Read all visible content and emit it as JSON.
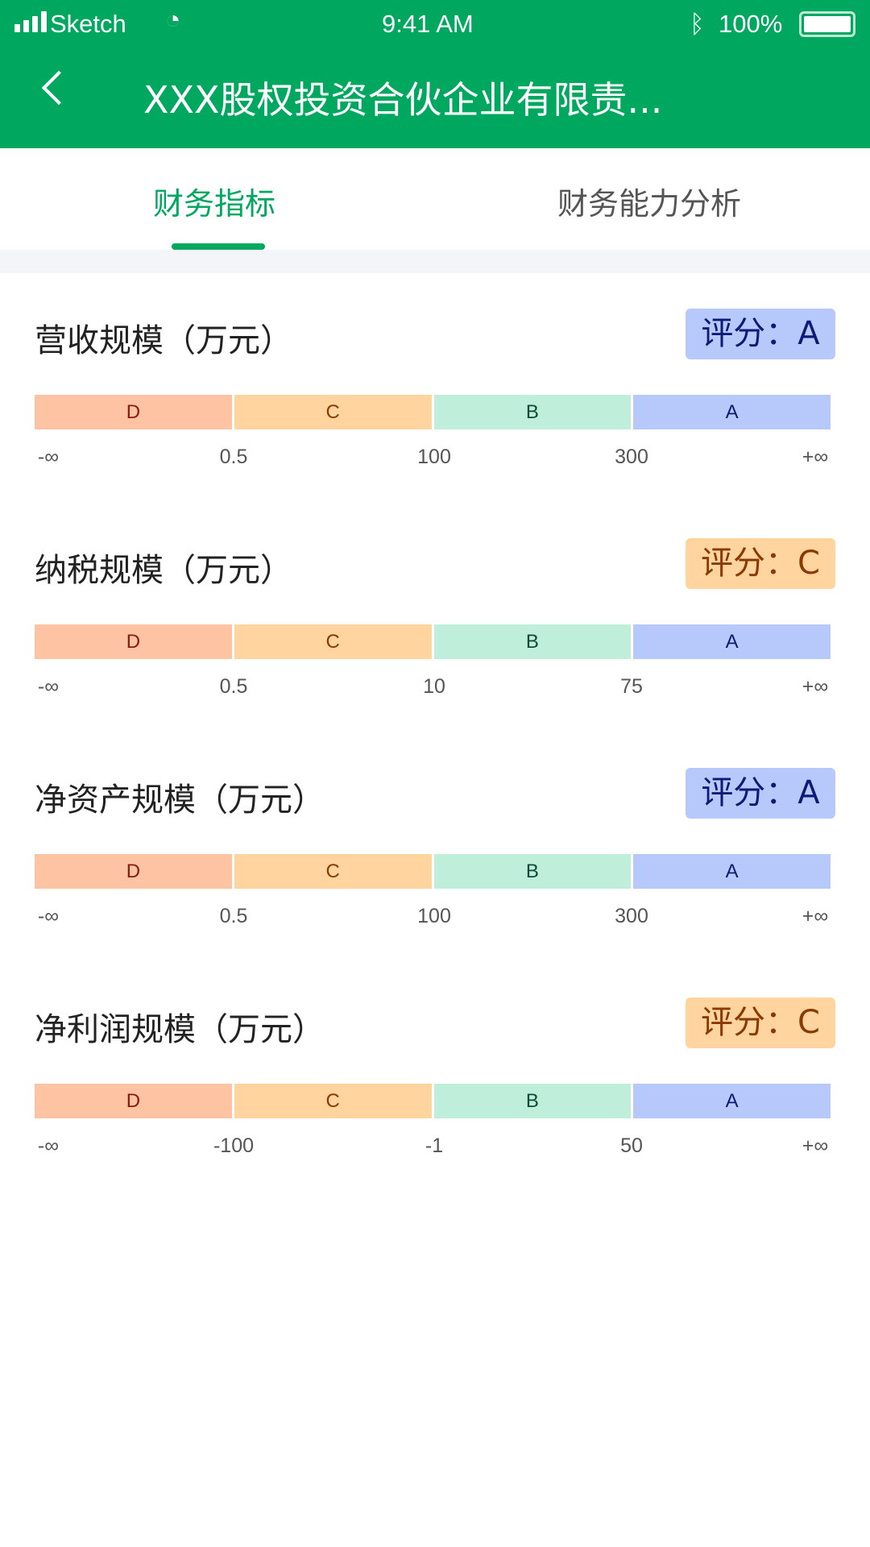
{
  "status": {
    "carrier": "Sketch",
    "time": "9:41 AM",
    "battery": "100%"
  },
  "header": {
    "title": "XXX股权投资合伙企业有限责..."
  },
  "tabs": [
    {
      "label": "财务指标",
      "active": true
    },
    {
      "label": "财务能力分析",
      "active": false
    }
  ],
  "grade_colors": {
    "D": {
      "bg": "#fdc3a3",
      "fg": "#8b1a0a"
    },
    "C": {
      "bg": "#ffd49e",
      "fg": "#8a3a00"
    },
    "B": {
      "bg": "#bfeedb",
      "fg": "#0d4a3a"
    },
    "A": {
      "bg": "#b6c9fa",
      "fg": "#0c1a78"
    }
  },
  "sections": [
    {
      "title": "营收规模（万元）",
      "score": "评分：A",
      "grade": "A",
      "segments": [
        "D",
        "C",
        "B",
        "A"
      ],
      "ticks": [
        "-∞",
        "0.5",
        "100",
        "300",
        "+∞"
      ]
    },
    {
      "title": "纳税规模（万元）",
      "score": "评分：C",
      "grade": "C",
      "segments": [
        "D",
        "C",
        "B",
        "A"
      ],
      "ticks": [
        "-∞",
        "0.5",
        "10",
        "75",
        "+∞"
      ]
    },
    {
      "title": "净资产规模（万元）",
      "score": "评分：A",
      "grade": "A",
      "segments": [
        "D",
        "C",
        "B",
        "A"
      ],
      "ticks": [
        "-∞",
        "0.5",
        "100",
        "300",
        "+∞"
      ]
    },
    {
      "title": "净利润规模（万元）",
      "score": "评分：C",
      "grade": "C",
      "segments": [
        "D",
        "C",
        "B",
        "A"
      ],
      "ticks": [
        "-∞",
        "-100",
        "-1",
        "50",
        "+∞"
      ]
    }
  ]
}
